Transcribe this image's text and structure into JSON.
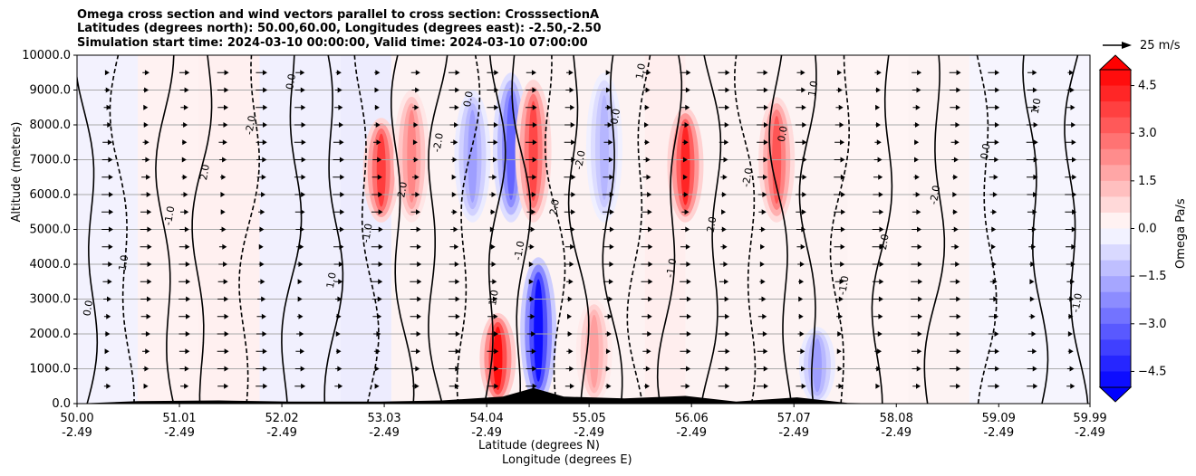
{
  "chart_data": {
    "type": "heatmap",
    "title_lines": [
      "Omega cross section and wind vectors parallel to cross section: CrosssectionA",
      "Latitudes (degrees north): 50.00,60.00, Longitudes (degrees east): -2.50,-2.50",
      "Simulation start time: 2024-03-10 00:00:00, Valid time: 2024-03-10 07:00:00"
    ],
    "ylabel": "Altitude (meters)",
    "xlabel_line1": "Latitude (degrees N)",
    "xlabel_line2": "Longitude (degrees E)",
    "ylim": [
      0,
      10000
    ],
    "y_ticks": [
      0,
      1000,
      2000,
      3000,
      4000,
      5000,
      6000,
      7000,
      8000,
      9000,
      10000
    ],
    "y_tick_labels": [
      "0.0",
      "1000.0",
      "2000.0",
      "3000.0",
      "4000.0",
      "5000.0",
      "6000.0",
      "7000.0",
      "8000.0",
      "9000.0",
      "10000.0"
    ],
    "xlim": [
      50.0,
      59.99
    ],
    "x_ticks": [
      50.0,
      51.01,
      52.02,
      53.03,
      54.04,
      55.05,
      56.06,
      57.07,
      58.08,
      59.09,
      59.99
    ],
    "x_tick_lat_labels": [
      "50.00",
      "51.01",
      "52.02",
      "53.03",
      "54.04",
      "55.05",
      "56.06",
      "57.07",
      "58.08",
      "59.09",
      "59.99"
    ],
    "x_tick_lon_labels": [
      "-2.49",
      "-2.49",
      "-2.49",
      "-2.49",
      "-2.49",
      "-2.49",
      "-2.49",
      "-2.49",
      "-2.49",
      "-2.49",
      "-2.49"
    ],
    "colorbar": {
      "label": "Omega Pa/s",
      "range": [
        -5,
        5
      ],
      "ticks": [
        4.5,
        3.0,
        1.5,
        0.0,
        -1.5,
        -3.0,
        -4.5
      ],
      "tick_labels": [
        "4.5",
        "3.0",
        "1.5",
        "0.0",
        "−1.5",
        "−3.0",
        "−4.5"
      ],
      "extend": "both"
    },
    "reference_vector": {
      "value": 25,
      "label": "25 m/s"
    },
    "omega_features": [
      {
        "lat": 54.15,
        "z_top": 2600,
        "omega": 5.0
      },
      {
        "lat": 54.55,
        "z_top": 4200,
        "omega": -5.0
      },
      {
        "lat": 54.28,
        "z_top": 9500,
        "omega": -3.2
      },
      {
        "lat": 54.5,
        "z_top": 9300,
        "omega": 3.8
      },
      {
        "lat": 53.0,
        "z_top": 8200,
        "omega": 4.0
      },
      {
        "lat": 53.3,
        "z_top": 9000,
        "omega": 2.5
      },
      {
        "lat": 53.9,
        "z_top": 9000,
        "omega": -2.0
      },
      {
        "lat": 56.0,
        "z_top": 8500,
        "omega": 4.5
      },
      {
        "lat": 56.9,
        "z_top": 8800,
        "omega": 3.5
      },
      {
        "lat": 55.2,
        "z_top": 9500,
        "omega": -1.5
      },
      {
        "lat": 57.3,
        "z_top": 2200,
        "omega": -2.0
      },
      {
        "lat": 55.1,
        "z_top": 3000,
        "omega": 2.0
      }
    ],
    "contour_labels": [
      "0.0",
      "1.0",
      "-1.0",
      "2.0",
      "-2.0"
    ],
    "terrain": [
      {
        "lat": 50.0,
        "z": 0
      },
      {
        "lat": 50.6,
        "z": 70
      },
      {
        "lat": 51.4,
        "z": 90
      },
      {
        "lat": 52.1,
        "z": 60
      },
      {
        "lat": 53.0,
        "z": 60
      },
      {
        "lat": 53.6,
        "z": 90
      },
      {
        "lat": 54.2,
        "z": 200
      },
      {
        "lat": 54.5,
        "z": 450
      },
      {
        "lat": 54.8,
        "z": 200
      },
      {
        "lat": 55.4,
        "z": 150
      },
      {
        "lat": 56.0,
        "z": 220
      },
      {
        "lat": 56.5,
        "z": 60
      },
      {
        "lat": 57.1,
        "z": 180
      },
      {
        "lat": 57.6,
        "z": 20
      },
      {
        "lat": 58.0,
        "z": 0
      },
      {
        "lat": 59.99,
        "z": 0
      }
    ]
  }
}
